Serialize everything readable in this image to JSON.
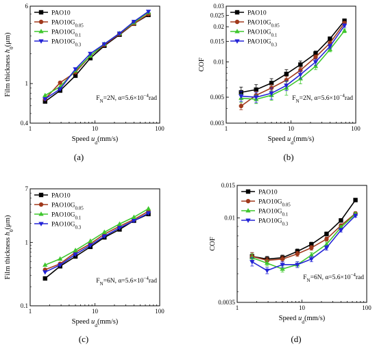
{
  "chart_data": [
    {
      "type": "line",
      "panel_label": "(a)",
      "x_scale": "log",
      "y_scale": "log",
      "xlim": [
        1,
        100
      ],
      "ylim": [
        0.4,
        6
      ],
      "xticks": [
        1,
        10,
        100
      ],
      "xtick_labels": [
        "1",
        "10",
        "100"
      ],
      "yticks": [
        0.4,
        1,
        6
      ],
      "ytick_labels": [
        "0.4",
        "1",
        "6"
      ],
      "xlabel_parts": [
        "Speed ",
        "u",
        "d",
        "(mm/s)"
      ],
      "ylabel_parts": [
        "Film thickness ",
        "h",
        "0",
        "(μm)"
      ],
      "annotation_parts": [
        "F",
        "N",
        "=2N, α=5.6×10",
        "−4",
        "rad"
      ],
      "legend_position": "top-left",
      "series": [
        {
          "name_main": "PAO10",
          "name_sub": "",
          "color": "#000000",
          "marker": "square",
          "x": [
            1.7,
            2.9,
            5,
            8.5,
            14,
            24,
            40,
            67
          ],
          "y": [
            0.66,
            0.85,
            1.2,
            1.8,
            2.4,
            3.1,
            4.0,
            4.9
          ],
          "err": []
        },
        {
          "name_main": "PAO10G",
          "name_sub": "0.05",
          "color": "#a0391c",
          "marker": "circle",
          "x": [
            1.7,
            2.9,
            5,
            8.5,
            14,
            24,
            40,
            67
          ],
          "y": [
            0.7,
            1.02,
            1.3,
            1.9,
            2.45,
            3.15,
            4.0,
            5.0
          ],
          "err": []
        },
        {
          "name_main": "PAO10G",
          "name_sub": "0.1",
          "color": "#3ec62d",
          "marker": "triangle-up",
          "x": [
            1.7,
            2.9,
            5,
            8.5,
            14,
            24,
            40,
            67
          ],
          "y": [
            0.76,
            0.93,
            1.35,
            1.9,
            2.5,
            3.2,
            4.1,
            5.2
          ],
          "err": []
        },
        {
          "name_main": "PAO10G",
          "name_sub": "0.3",
          "color": "#2323d6",
          "marker": "triangle-down",
          "x": [
            1.7,
            2.9,
            5,
            8.5,
            14,
            24,
            40,
            67
          ],
          "y": [
            0.7,
            0.88,
            1.4,
            2.0,
            2.5,
            3.2,
            4.2,
            5.3
          ],
          "err": []
        }
      ]
    },
    {
      "type": "line",
      "panel_label": "(b)",
      "x_scale": "log",
      "y_scale": "log",
      "xlim": [
        1,
        100
      ],
      "ylim": [
        0.003,
        0.03
      ],
      "xticks": [
        1,
        10,
        100
      ],
      "xtick_labels": [
        "1",
        "10",
        "100"
      ],
      "yticks": [
        0.003,
        0.005,
        0.01,
        0.015,
        0.02,
        0.025,
        0.03
      ],
      "ytick_labels": [
        "0.003",
        "0.005",
        "0.01",
        "0.015",
        "0.02",
        "0.025",
        "0.03"
      ],
      "xlabel_parts": [
        "Speed ",
        "u",
        "d",
        "(mm/s)"
      ],
      "ylabel_parts": [
        "COF",
        "",
        "",
        ""
      ],
      "annotation_parts": [
        "F",
        "N",
        "=2N, α=5.6×10",
        "−4",
        "rad"
      ],
      "legend_position": "top-left",
      "series": [
        {
          "name_main": "PAO10",
          "name_sub": "",
          "color": "#000000",
          "marker": "square",
          "x": [
            1.7,
            2.9,
            5,
            8.5,
            14,
            24,
            40,
            67
          ],
          "y": [
            0.0055,
            0.0058,
            0.0066,
            0.0079,
            0.0095,
            0.0118,
            0.0158,
            0.0225
          ],
          "err": [
            0.0006,
            0.0006,
            0.0006,
            0.0007,
            0.0007,
            0.0006,
            0.0006,
            0.0008
          ]
        },
        {
          "name_main": "PAO10G",
          "name_sub": "0.05",
          "color": "#a0391c",
          "marker": "circle",
          "x": [
            1.7,
            2.9,
            5,
            8.5,
            14,
            24,
            40,
            67
          ],
          "y": [
            0.0042,
            0.0052,
            0.006,
            0.007,
            0.0085,
            0.011,
            0.0145,
            0.0215
          ],
          "err": [
            0.0003,
            0.0004,
            0.0004,
            0.0005,
            0.0005,
            0.0005,
            0.0006,
            0.0007
          ]
        },
        {
          "name_main": "PAO10G",
          "name_sub": "0.1",
          "color": "#3ec62d",
          "marker": "triangle-up",
          "x": [
            1.7,
            2.9,
            5,
            8.5,
            14,
            24,
            40,
            67
          ],
          "y": [
            0.0049,
            0.0048,
            0.0052,
            0.006,
            0.0072,
            0.0092,
            0.0128,
            0.0185
          ],
          "err": [
            0.0004,
            0.0004,
            0.0005,
            0.0008,
            0.0007,
            0.0006,
            0.0006,
            0.0007
          ]
        },
        {
          "name_main": "PAO10G",
          "name_sub": "0.3",
          "color": "#2323d6",
          "marker": "triangle-down",
          "x": [
            1.7,
            2.9,
            5,
            8.5,
            14,
            24,
            40,
            67
          ],
          "y": [
            0.0051,
            0.005,
            0.0054,
            0.0063,
            0.0078,
            0.01,
            0.0136,
            0.0205
          ],
          "err": [
            0.0005,
            0.0005,
            0.0006,
            0.0006,
            0.0006,
            0.0006,
            0.0006,
            0.0007
          ]
        }
      ]
    },
    {
      "type": "line",
      "panel_label": "(c)",
      "x_scale": "log",
      "y_scale": "log",
      "xlim": [
        1,
        100
      ],
      "ylim": [
        0.1,
        7
      ],
      "xticks": [
        1,
        10,
        100
      ],
      "xtick_labels": [
        "1",
        "10",
        "100"
      ],
      "yticks": [
        0.1,
        1,
        7
      ],
      "ytick_labels": [
        "0.1",
        "1",
        "7"
      ],
      "xlabel_parts": [
        "Speed ",
        "u",
        "d",
        "(mm/s)"
      ],
      "ylabel_parts": [
        "Film thickness ",
        "h",
        "0",
        "(μm)"
      ],
      "annotation_parts": [
        "F",
        "N",
        "=6N, α=5.6×10",
        "−4",
        "rad"
      ],
      "legend_position": "top-left",
      "series": [
        {
          "name_main": "PAO10",
          "name_sub": "",
          "color": "#000000",
          "marker": "square",
          "x": [
            1.7,
            2.9,
            5,
            8.5,
            14,
            24,
            40,
            67
          ],
          "y": [
            0.27,
            0.42,
            0.6,
            0.85,
            1.2,
            1.6,
            2.2,
            2.8
          ],
          "err": []
        },
        {
          "name_main": "PAO10G",
          "name_sub": "0.05",
          "color": "#a0391c",
          "marker": "circle",
          "x": [
            1.7,
            2.9,
            5,
            8.5,
            14,
            24,
            40,
            67
          ],
          "y": [
            0.37,
            0.46,
            0.7,
            0.95,
            1.35,
            1.8,
            2.3,
            3.1
          ],
          "err": []
        },
        {
          "name_main": "PAO10G",
          "name_sub": "0.1",
          "color": "#3ec62d",
          "marker": "triangle-up",
          "x": [
            1.7,
            2.9,
            5,
            8.5,
            14,
            24,
            40,
            67
          ],
          "y": [
            0.44,
            0.55,
            0.75,
            1.05,
            1.45,
            1.95,
            2.5,
            3.4
          ],
          "err": []
        },
        {
          "name_main": "PAO10G",
          "name_sub": "0.3",
          "color": "#2323d6",
          "marker": "triangle-down",
          "x": [
            1.7,
            2.9,
            5,
            8.5,
            14,
            24,
            40,
            67
          ],
          "y": [
            0.34,
            0.44,
            0.65,
            0.9,
            1.25,
            1.7,
            2.2,
            2.9
          ],
          "err": []
        }
      ]
    },
    {
      "type": "line",
      "panel_label": "(d)",
      "x_scale": "log",
      "y_scale": "log",
      "xlim": [
        1,
        100
      ],
      "ylim": [
        0.0035,
        0.015
      ],
      "xticks": [
        1,
        10,
        100
      ],
      "xtick_labels": [
        "1",
        "10",
        "100"
      ],
      "yticks": [
        0.0035,
        0.01,
        0.015
      ],
      "ytick_labels": [
        "0.0035",
        "0.01",
        "0.015"
      ],
      "xlabel_parts": [
        "Speed ",
        "u",
        "d",
        "(mm/s)"
      ],
      "ylabel_parts": [
        "COF",
        "",
        "",
        ""
      ],
      "annotation_parts": [
        "F",
        "N",
        "=6N, α=5.6×10",
        "−4",
        "rad"
      ],
      "legend_position": "top-left",
      "series": [
        {
          "name_main": "PAO10",
          "name_sub": "",
          "color": "#000000",
          "marker": "square",
          "x": [
            1.7,
            2.9,
            5,
            8.5,
            14,
            24,
            40,
            67
          ],
          "y": [
            0.0062,
            0.006,
            0.0061,
            0.0066,
            0.0072,
            0.0082,
            0.0097,
            0.0125
          ],
          "err": [
            0.0003,
            0.0002,
            0.0002,
            0.0002,
            0.0002,
            0.0002,
            0.0002,
            0.0002
          ]
        },
        {
          "name_main": "PAO10G",
          "name_sub": "0.05",
          "color": "#a0391c",
          "marker": "circle",
          "x": [
            1.7,
            2.9,
            5,
            8.5,
            14,
            24,
            40,
            67
          ],
          "y": [
            0.0062,
            0.0059,
            0.006,
            0.0064,
            0.0069,
            0.0077,
            0.0091,
            0.0106
          ],
          "err": [
            0.0003,
            0.0002,
            0.0002,
            0.0002,
            0.0002,
            0.0002,
            0.0002,
            0.0002
          ]
        },
        {
          "name_main": "PAO10G",
          "name_sub": "0.1",
          "color": "#3ec62d",
          "marker": "triangle-up",
          "x": [
            1.7,
            2.9,
            5,
            8.5,
            14,
            24,
            40,
            67
          ],
          "y": [
            0.0061,
            0.0057,
            0.0053,
            0.0056,
            0.0063,
            0.0072,
            0.0089,
            0.0105
          ],
          "err": [
            0.0003,
            0.0002,
            0.0002,
            0.0002,
            0.0002,
            0.0002,
            0.0002,
            0.0002
          ]
        },
        {
          "name_main": "PAO10G",
          "name_sub": "0.3",
          "color": "#2323d6",
          "marker": "triangle-down",
          "x": [
            1.7,
            2.9,
            5,
            8.5,
            14,
            24,
            40,
            67
          ],
          "y": [
            0.0058,
            0.0052,
            0.0056,
            0.0056,
            0.006,
            0.0069,
            0.0086,
            0.0103
          ],
          "err": [
            0.0003,
            0.0002,
            0.0002,
            0.0002,
            0.0002,
            0.0002,
            0.0002,
            0.0002
          ]
        }
      ]
    }
  ]
}
